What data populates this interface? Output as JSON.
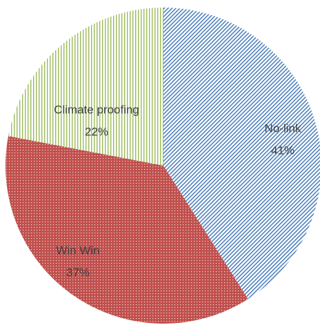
{
  "chart_data": {
    "type": "pie",
    "categories": [
      "No-link",
      "Win Win",
      "Climate proofing"
    ],
    "values": [
      41,
      37,
      22
    ],
    "value_labels": [
      "41%",
      "37%",
      "22%"
    ],
    "colors": [
      "#4f81bd",
      "#c0504d",
      "#9bbb59"
    ]
  }
}
